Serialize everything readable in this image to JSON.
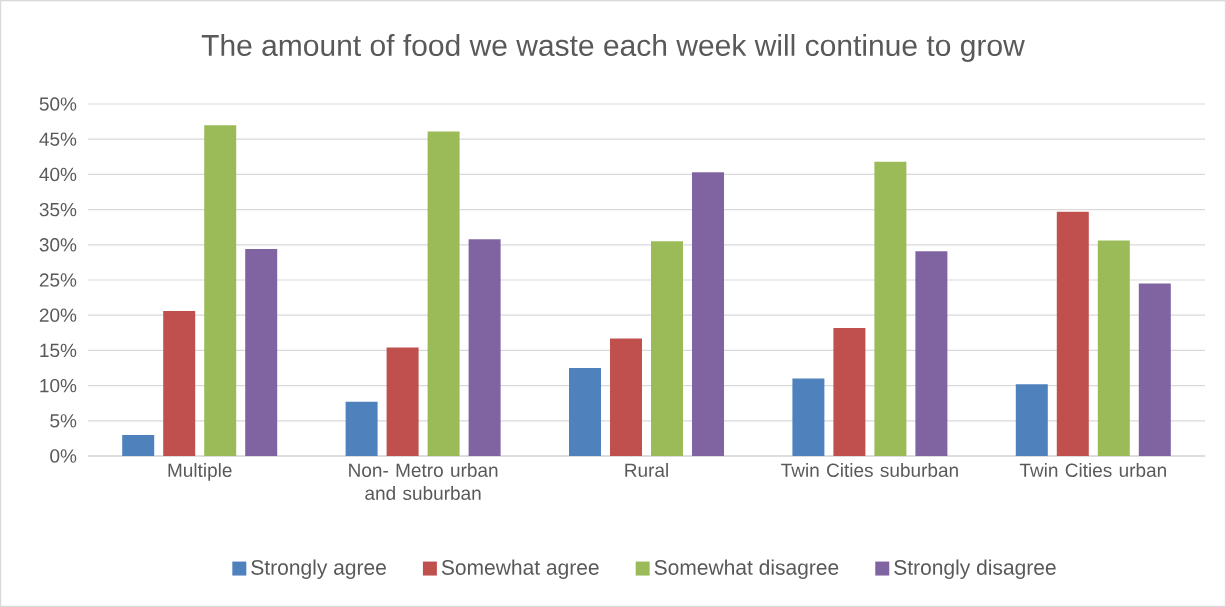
{
  "chart_data": {
    "type": "bar",
    "title": "The amount of food we waste each week will continue to grow",
    "categories": [
      "Multiple",
      "Non- Metro urban and suburban",
      "Rural",
      "Twin Cities suburban",
      "Twin Cities urban"
    ],
    "series": [
      {
        "name": "Strongly agree",
        "color": "#4f81bd",
        "values": [
          3.0,
          7.7,
          12.5,
          11.0,
          10.2
        ]
      },
      {
        "name": "Somewhat agree",
        "color": "#c0504d",
        "values": [
          20.6,
          15.4,
          16.7,
          18.2,
          34.7
        ]
      },
      {
        "name": "Somewhat disagree",
        "color": "#9bbb59",
        "values": [
          47.0,
          46.1,
          30.5,
          41.8,
          30.6
        ]
      },
      {
        "name": "Strongly disagree",
        "color": "#8064a2",
        "values": [
          29.4,
          30.8,
          40.3,
          29.1,
          24.5
        ]
      }
    ],
    "ylim": [
      0,
      50
    ],
    "yticks": [
      {
        "value": 0,
        "label": "0%"
      },
      {
        "value": 5,
        "label": "5%"
      },
      {
        "value": 10,
        "label": "10%"
      },
      {
        "value": 15,
        "label": "15%"
      },
      {
        "value": 20,
        "label": "20%"
      },
      {
        "value": 25,
        "label": "25%"
      },
      {
        "value": 30,
        "label": "30%"
      },
      {
        "value": 35,
        "label": "35%"
      },
      {
        "value": 40,
        "label": "40%"
      },
      {
        "value": 45,
        "label": "45%"
      },
      {
        "value": 50,
        "label": "50%"
      }
    ],
    "grid": "y",
    "legend": "bottom"
  }
}
